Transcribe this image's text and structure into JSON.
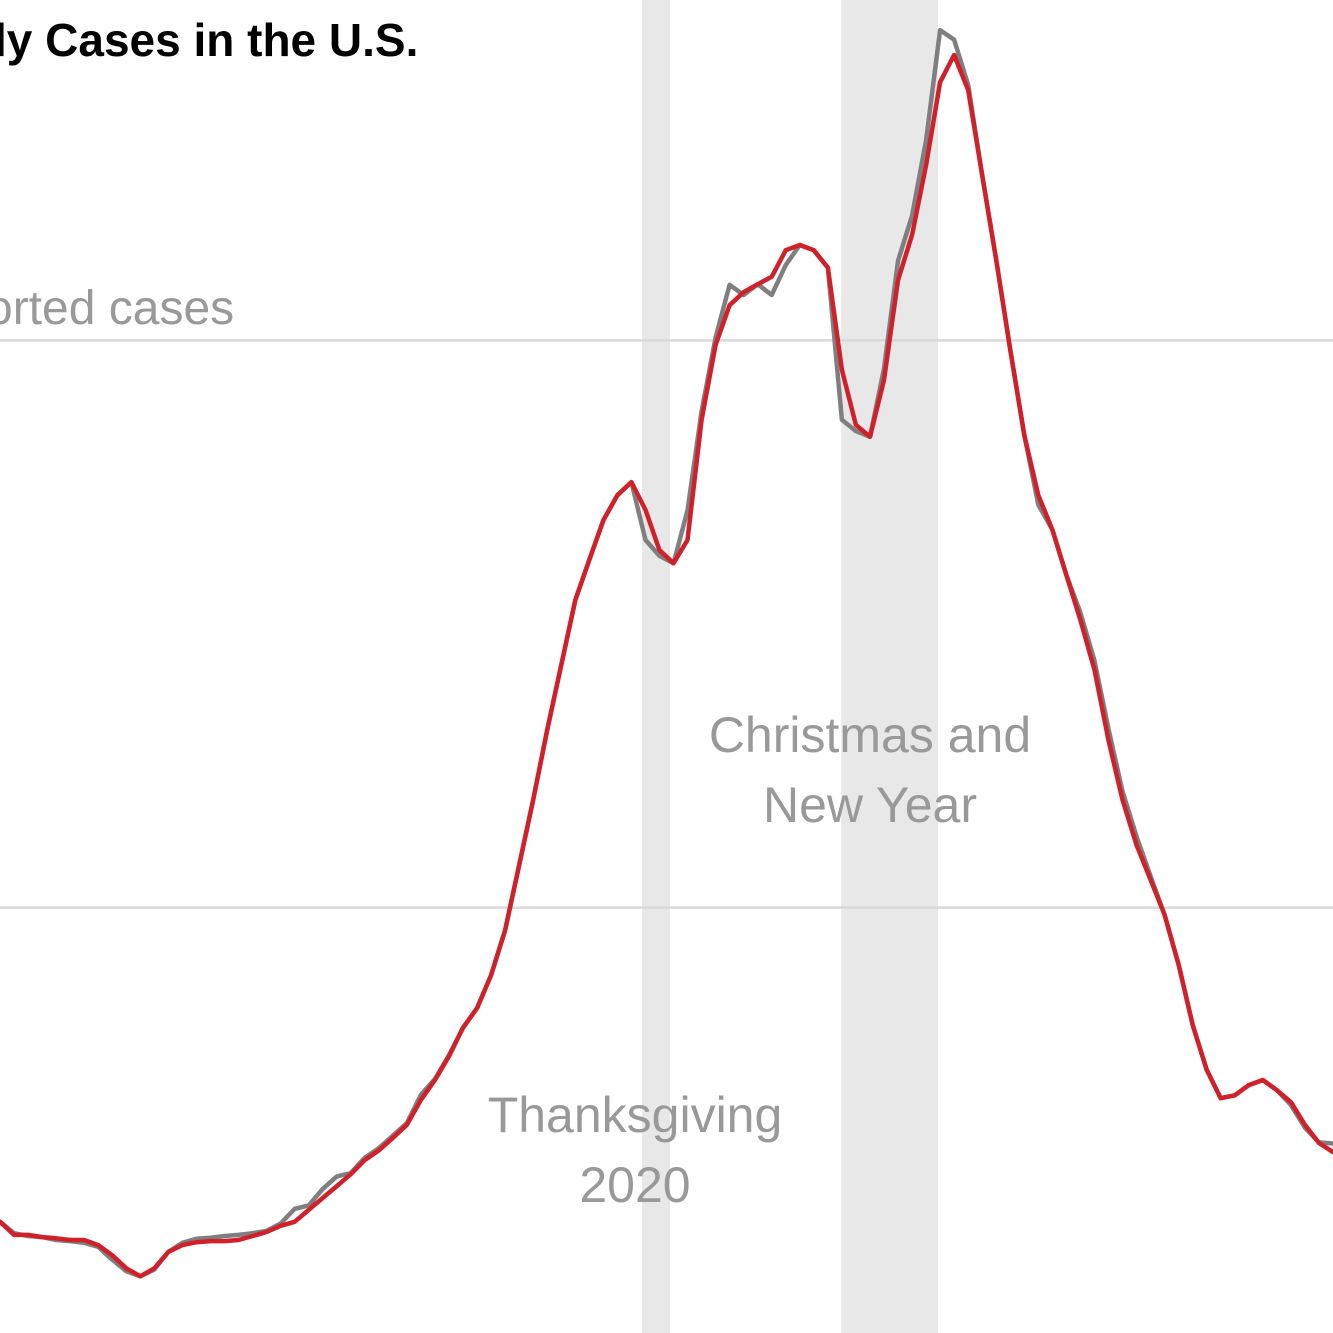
{
  "chart_data": {
    "type": "line",
    "title": "ly Cases in the U.S.",
    "axis_note": "orted cases",
    "xlim": [
      0,
      190
    ],
    "ylim": [
      25,
      260
    ],
    "yticks": [
      100,
      200
    ],
    "grid": true,
    "bands": [
      {
        "range": [
          91.5,
          95.5
        ],
        "lines": [
          "Thanksgiving",
          "2020"
        ]
      },
      {
        "range": [
          119.9,
          133.7
        ],
        "lines": [
          "Christmas and",
          "New Year"
        ]
      }
    ],
    "x": [
      0,
      2,
      4,
      6,
      8,
      10,
      12,
      14,
      16,
      18,
      20,
      22,
      24,
      26,
      28,
      30,
      32,
      34,
      36,
      38,
      40,
      42,
      44,
      46,
      48,
      50,
      52,
      54,
      56,
      58,
      60,
      62,
      64,
      66,
      68,
      70,
      72,
      74,
      76,
      78,
      80,
      82,
      84,
      86,
      88,
      90,
      92,
      94,
      96,
      98,
      100,
      102,
      104,
      106,
      108,
      110,
      112,
      114,
      116,
      118,
      120,
      122,
      124,
      126,
      128,
      130,
      132,
      134,
      136,
      138,
      140,
      142,
      144,
      146,
      148,
      150,
      152,
      154,
      156,
      158,
      160,
      162,
      164,
      166,
      168,
      170,
      172,
      174,
      176,
      178,
      180,
      182,
      184,
      186,
      188,
      190
    ],
    "series": [
      {
        "color": "#7f7f7f",
        "values": [
          44.6,
          42.6,
          42.1,
          41.9,
          41.4,
          41.2,
          40.9,
          40.2,
          37.9,
          35.9,
          35.0,
          36.2,
          39.3,
          40.9,
          41.6,
          41.8,
          42.1,
          42.3,
          42.6,
          43.0,
          44.3,
          46.9,
          47.5,
          50.4,
          52.6,
          53.2,
          55.9,
          57.6,
          59.8,
          62.0,
          67.0,
          69.8,
          74.0,
          78.8,
          82.3,
          88.1,
          96.0,
          107.5,
          119.0,
          131.3,
          142.8,
          154.2,
          161.3,
          168.3,
          172.7,
          175.0,
          164.8,
          162.0,
          160.7,
          170.0,
          187.5,
          200.5,
          209.8,
          208.0,
          209.9,
          208.0,
          213.3,
          216.8,
          215.9,
          212.8,
          186.0,
          184.0,
          183.0,
          195.0,
          214.0,
          222.0,
          235.3,
          254.7,
          253.0,
          245.0,
          229.1,
          214.2,
          198.3,
          183.3,
          171.0,
          166.6,
          158.6,
          152.0,
          143.5,
          131.5,
          120.5,
          112.5,
          105.5,
          98.7,
          89.9,
          79.3,
          71.4,
          66.4,
          66.9,
          68.7,
          69.6,
          67.8,
          65.2,
          61.2,
          58.6,
          58.4
        ]
      },
      {
        "color": "#d0202a",
        "values": [
          44.6,
          42.3,
          42.3,
          41.9,
          41.7,
          41.4,
          41.4,
          40.5,
          38.7,
          36.4,
          35.0,
          36.4,
          39.3,
          40.5,
          41.0,
          41.2,
          41.2,
          41.4,
          42.1,
          42.8,
          43.9,
          44.6,
          46.7,
          48.8,
          50.9,
          53.0,
          55.5,
          57.2,
          59.4,
          61.7,
          66.1,
          69.6,
          73.8,
          78.8,
          82.3,
          88.1,
          96.0,
          107.5,
          119.0,
          131.3,
          142.8,
          154.2,
          161.3,
          168.3,
          172.7,
          175.0,
          170.1,
          163.0,
          160.7,
          164.8,
          186.0,
          199.2,
          206.2,
          208.5,
          209.9,
          211.2,
          215.9,
          216.8,
          215.9,
          212.8,
          194.8,
          185.1,
          183.0,
          193.0,
          210.6,
          218.6,
          230.9,
          245.5,
          250.3,
          244.1,
          229.1,
          214.2,
          198.3,
          183.3,
          172.7,
          166.6,
          158.6,
          150.7,
          141.9,
          129.5,
          119.0,
          111.0,
          104.9,
          98.7,
          89.9,
          79.3,
          71.4,
          66.4,
          66.9,
          68.7,
          69.6,
          67.8,
          65.7,
          61.7,
          58.5,
          56.9
        ]
      }
    ]
  }
}
